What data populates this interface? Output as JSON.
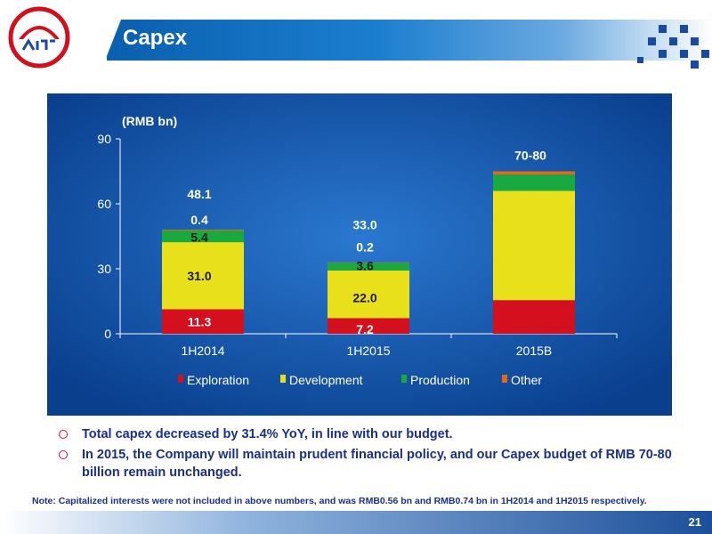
{
  "slide": {
    "title": "Capex",
    "page_number": "21"
  },
  "colors": {
    "exploration": "#d4101e",
    "development": "#e8e01a",
    "production": "#1aa840",
    "other": "#e06a1a",
    "chart_bg": "#0c4aa0",
    "bullet_text": "#1a2f8a"
  },
  "chart_data": {
    "type": "bar",
    "stacked": true,
    "ylabel": "(RMB bn)",
    "ylim": [
      0,
      90
    ],
    "yticks": [
      "0",
      "30",
      "60",
      "90"
    ],
    "categories": [
      "1H2014",
      "1H2015",
      "2015B"
    ],
    "series": [
      {
        "name": "Exploration",
        "values": [
          11.3,
          7.2,
          15.5
        ],
        "labels": [
          "11.3",
          "7.2",
          ""
        ]
      },
      {
        "name": "Development",
        "values": [
          31.0,
          22.0,
          50.5
        ],
        "labels": [
          "31.0",
          "22.0",
          ""
        ]
      },
      {
        "name": "Production",
        "values": [
          5.4,
          3.6,
          7.5
        ],
        "labels": [
          "5.4",
          "3.6",
          ""
        ]
      },
      {
        "name": "Other",
        "values": [
          0.4,
          0.2,
          1.5
        ],
        "labels": [
          "0.4",
          "0.2",
          ""
        ]
      }
    ],
    "totals": [
      "48.1",
      "33.0",
      "70-80"
    ],
    "legend_position": "bottom",
    "grid": false
  },
  "bullets": [
    "Total capex decreased by 31.4% YoY, in line with our budget.",
    "In 2015, the Company will maintain prudent financial policy, and our Capex budget of RMB 70-80 billion remain unchanged."
  ],
  "note": "Note: Capitalized interests were not included in above numbers, and was RMB0.56 bn and RMB0.74 bn in 1H2014 and 1H2015 respectively."
}
